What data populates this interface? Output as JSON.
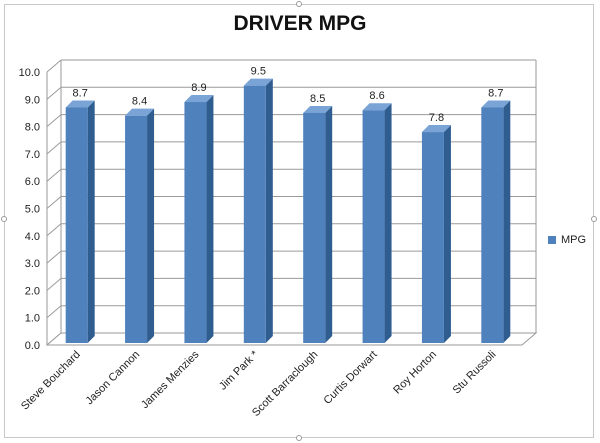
{
  "chart_data": {
    "type": "bar",
    "title": "DRIVER MPG",
    "categories": [
      "Steve Bouchard",
      "Jason Cannon",
      "James Menzies",
      "Jim Park *",
      "Scott Barraclough",
      "Curtis Dorwart",
      "Roy Horton",
      "Stu Russoli"
    ],
    "series": [
      {
        "name": "MPG",
        "values": [
          8.7,
          8.4,
          8.9,
          9.5,
          8.5,
          8.6,
          7.8,
          8.7
        ]
      }
    ],
    "data_labels": [
      "8.7",
      "8.4",
      "8.9",
      "9.5",
      "8.5",
      "8.6",
      "7.8",
      "8.7"
    ],
    "ylim": [
      0,
      10
    ],
    "yticks": [
      "0.0",
      "1.0",
      "2.0",
      "3.0",
      "4.0",
      "5.0",
      "6.0",
      "7.0",
      "8.0",
      "9.0",
      "10.0"
    ],
    "grid": true,
    "legend_position": "right",
    "bar_color": "#4f81bd",
    "bar_side_color": "#2f5d8f",
    "bar_top_color": "#7aa3d6"
  }
}
